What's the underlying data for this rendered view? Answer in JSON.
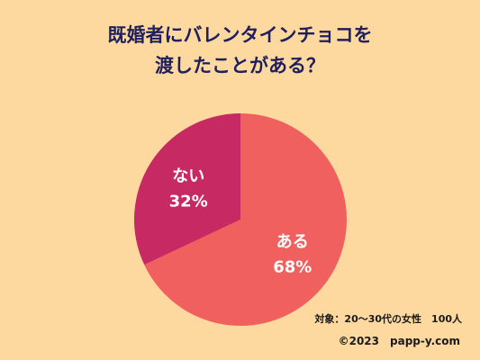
{
  "title": {
    "line1": "既婚者にバレンタインチョコを",
    "line2": "渡したことがある？"
  },
  "chart_data": {
    "type": "pie",
    "title": "既婚者にバレンタインチョコを渡したことがある？",
    "slices": [
      {
        "label": "ある",
        "value": 68,
        "value_label": "68%",
        "color": "#F0605E"
      },
      {
        "label": "ない",
        "value": 32,
        "value_label": "32%",
        "color": "#C72A62"
      }
    ],
    "start": "12 o'clock",
    "direction": "clockwise",
    "legend": "none"
  },
  "note": "対象：20〜30代の女性　100人",
  "credit": "©2023　papp-y.com",
  "colors": {
    "background": "#FDD9A0",
    "title": "#1F1F5C"
  }
}
